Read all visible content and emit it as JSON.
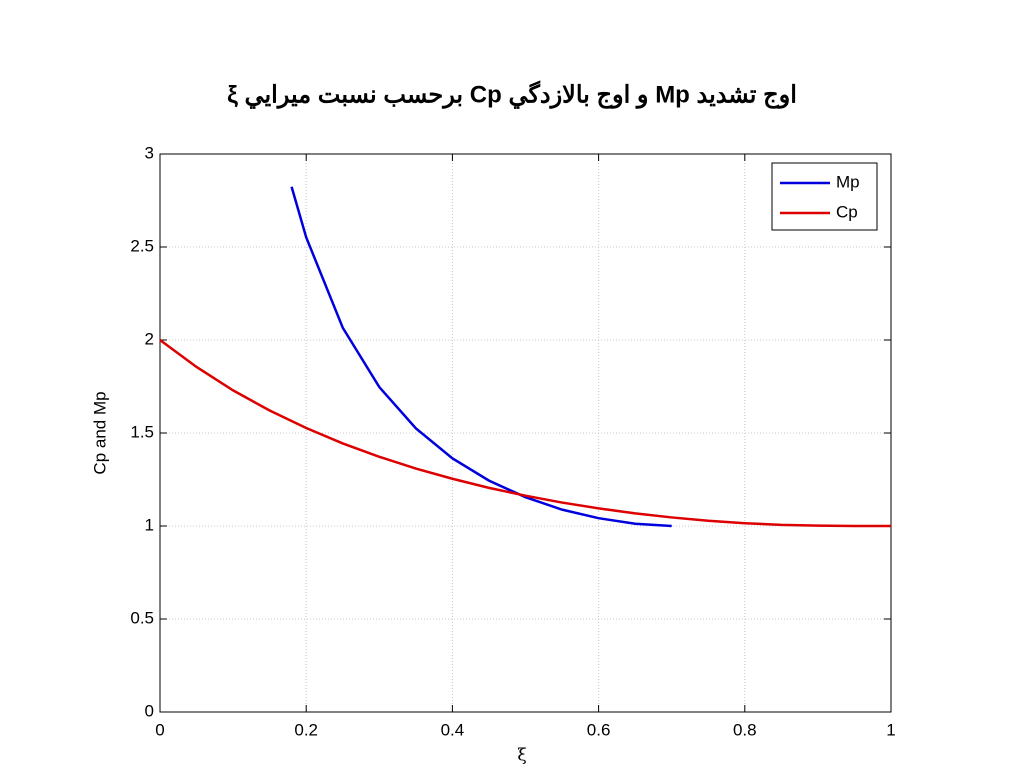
{
  "chart_data": {
    "type": "line",
    "title": "اوج تشديد Mp و اوج بالازدگي Cp برحسب نسبت ميرايي ξ",
    "xlabel": "ξ",
    "ylabel": "Cp and Mp",
    "xlim": [
      0,
      1
    ],
    "ylim": [
      0,
      3
    ],
    "xticks": [
      0,
      0.2,
      0.4,
      0.6,
      0.8,
      1
    ],
    "yticks": [
      0,
      0.5,
      1,
      1.5,
      2,
      2.5,
      3
    ],
    "grid": true,
    "legend": "upper right",
    "series": [
      {
        "name": "Mp",
        "color": "#0000dd",
        "x": [
          0.18,
          0.2,
          0.25,
          0.3,
          0.35,
          0.4,
          0.45,
          0.5,
          0.55,
          0.6,
          0.65,
          0.7
        ],
        "values": [
          2.824,
          2.552,
          2.066,
          1.747,
          1.525,
          1.364,
          1.244,
          1.155,
          1.088,
          1.042,
          1.012,
          1.0
        ]
      },
      {
        "name": "Cp",
        "color": "#dd0000",
        "x": [
          0,
          0.05,
          0.1,
          0.15,
          0.2,
          0.25,
          0.3,
          0.35,
          0.4,
          0.45,
          0.5,
          0.55,
          0.6,
          0.65,
          0.7,
          0.75,
          0.8,
          0.85,
          0.9,
          0.95,
          1
        ],
        "values": [
          2,
          1.855,
          1.729,
          1.621,
          1.527,
          1.444,
          1.372,
          1.309,
          1.254,
          1.205,
          1.163,
          1.126,
          1.095,
          1.068,
          1.046,
          1.028,
          1.015,
          1.006,
          1.002,
          1.0,
          1.0
        ]
      }
    ]
  }
}
